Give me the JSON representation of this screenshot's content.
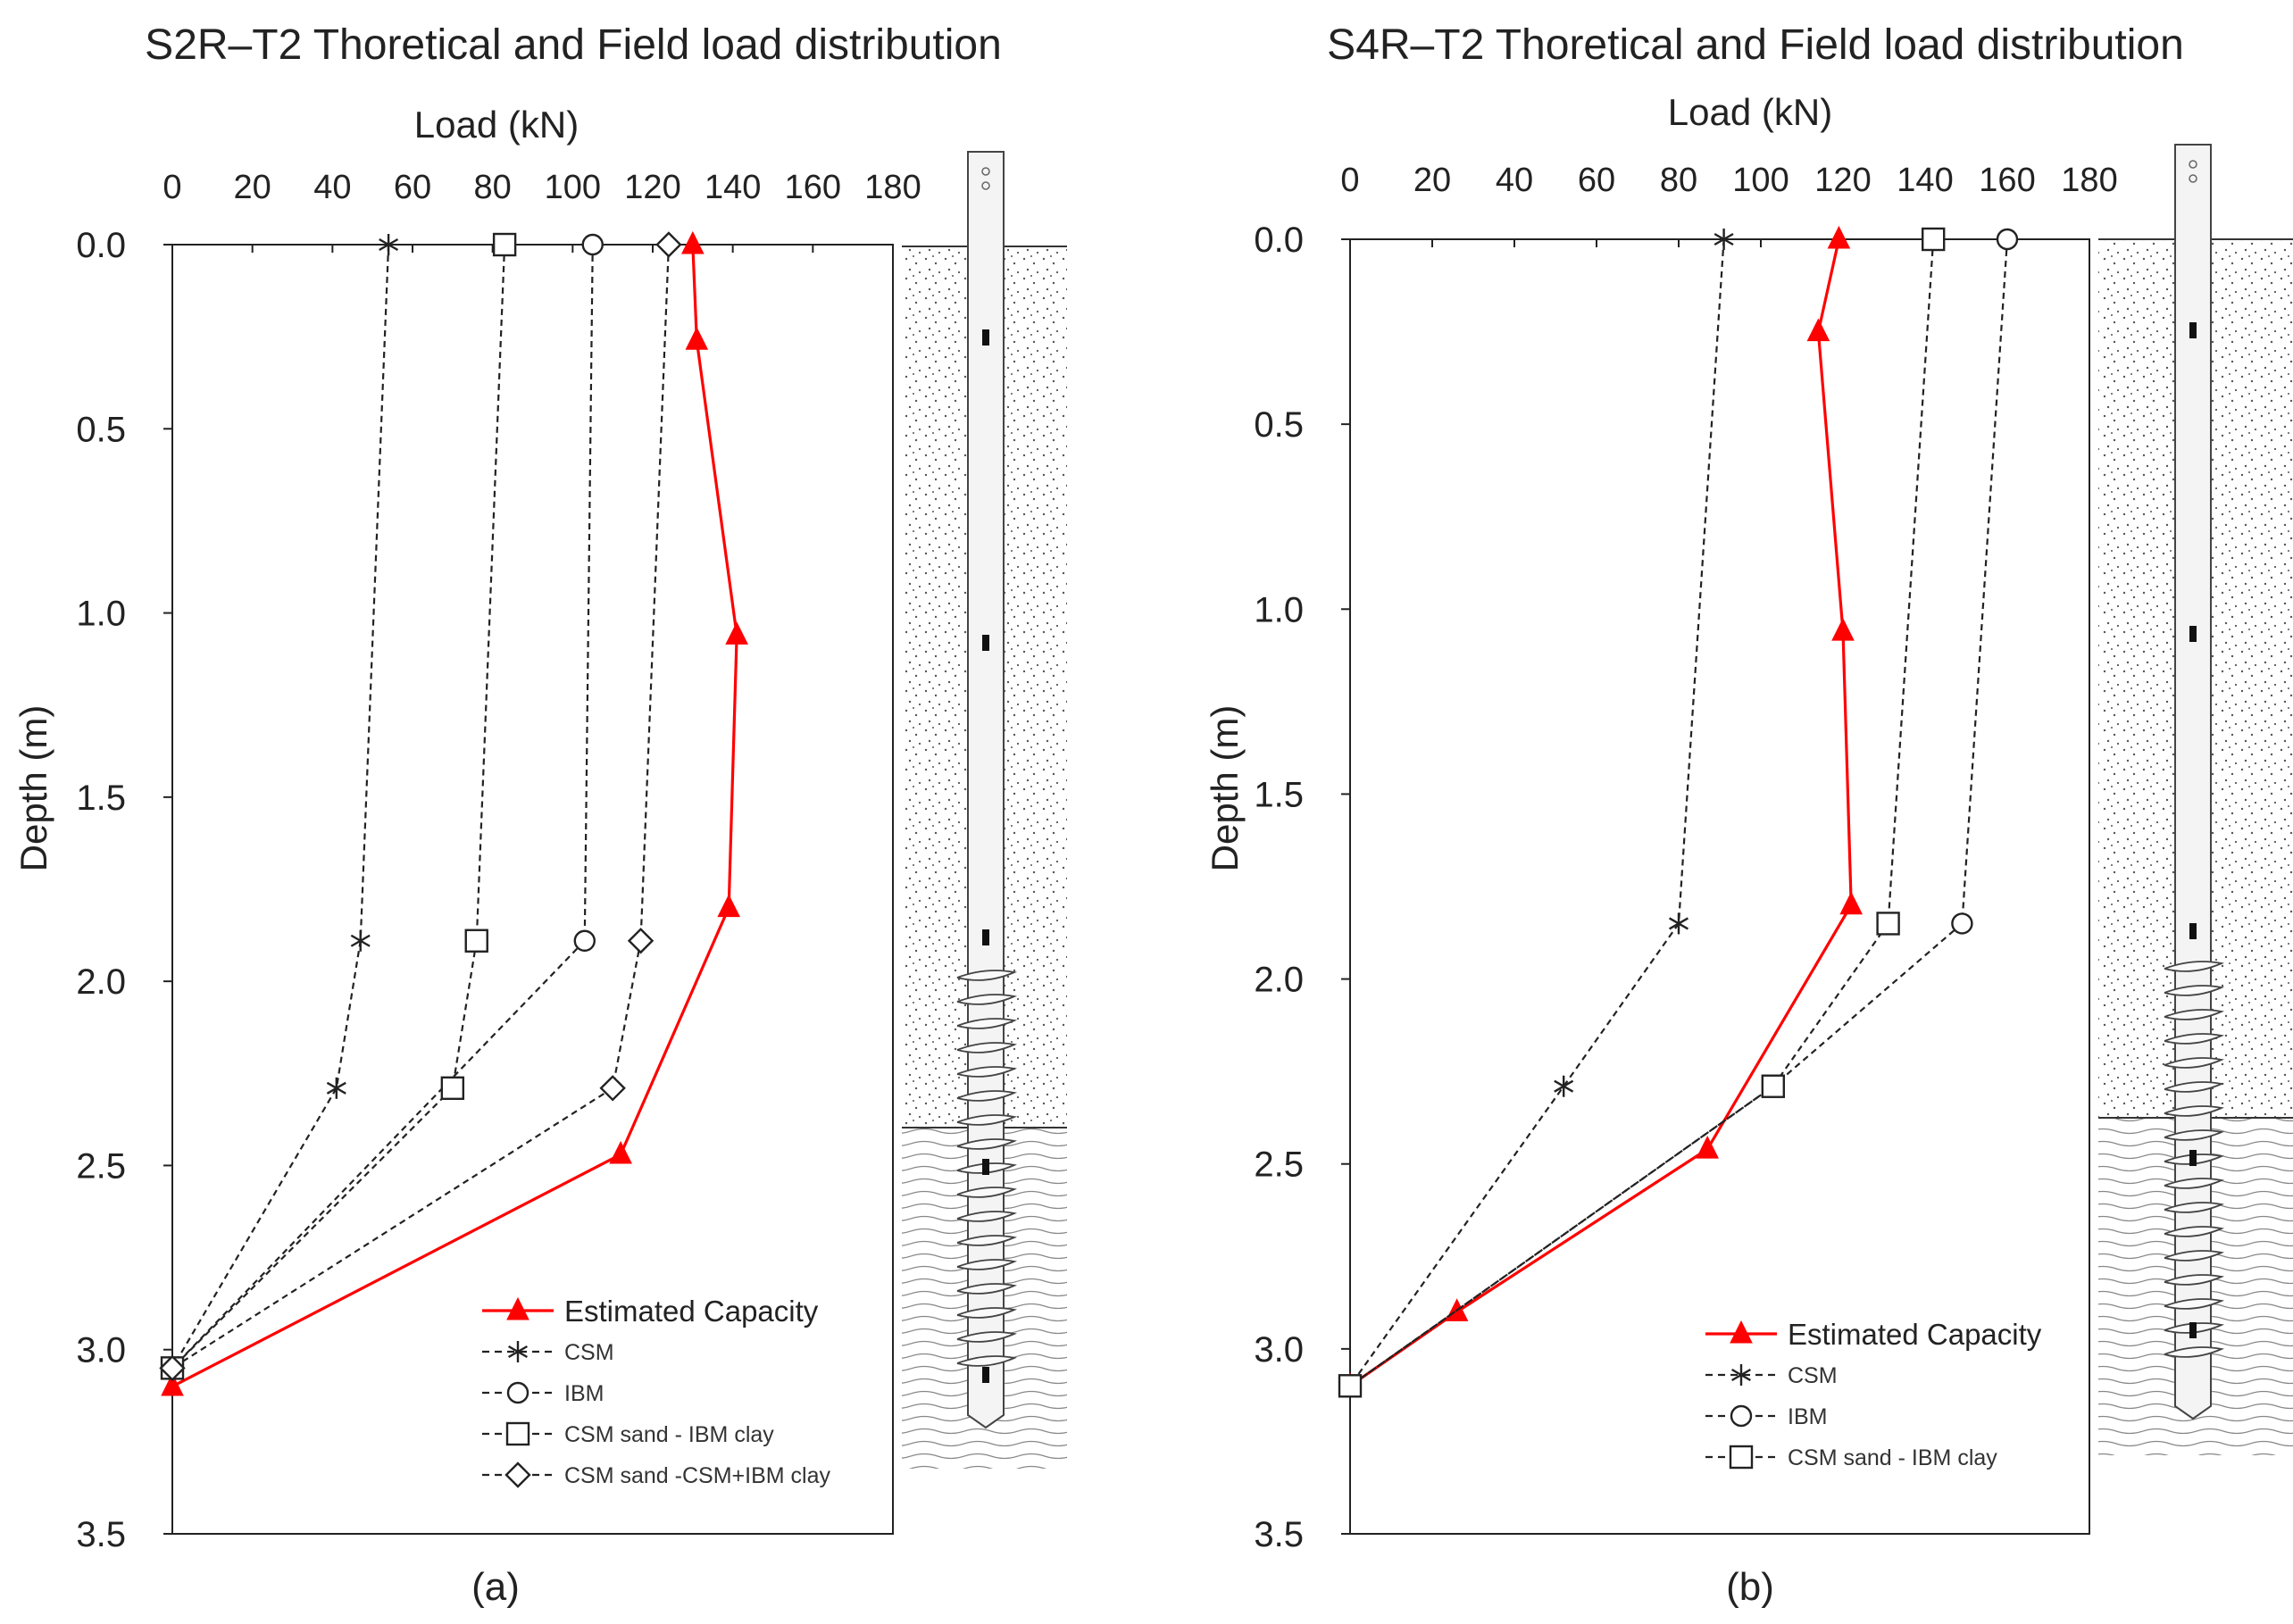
{
  "chart_data": [
    {
      "type": "line",
      "title": "S2R–T2 Thoretical and Field load distribution",
      "xlabel": "Load (kN)",
      "ylabel": "Depth (m)",
      "xlim": [
        0,
        180
      ],
      "ylim": [
        0,
        3.5
      ],
      "xticks": [
        "0",
        "20",
        "40",
        "60",
        "80",
        "100",
        "120",
        "140",
        "160",
        "180"
      ],
      "yticks": [
        "0.0",
        "0.5",
        "1.0",
        "1.5",
        "2.0",
        "2.5",
        "3.0",
        "3.5"
      ],
      "panel_label": "(a)",
      "series": [
        {
          "name": "Estimated Capacity",
          "marker": "triangle",
          "color": "#ff0000",
          "style": "solid",
          "points": [
            [
              130,
              0.0
            ],
            [
              131,
              0.26
            ],
            [
              141,
              1.06
            ],
            [
              139,
              1.8
            ],
            [
              112,
              2.47
            ],
            [
              0,
              3.1
            ]
          ]
        },
        {
          "name": "CSM",
          "marker": "asterisk",
          "color": "#222222",
          "style": "dashed",
          "points": [
            [
              54,
              0.0
            ],
            [
              47,
              1.89
            ],
            [
              41,
              2.29
            ],
            [
              0,
              3.05
            ]
          ]
        },
        {
          "name": "IBM",
          "marker": "circle",
          "color": "#222222",
          "style": "dashed",
          "points": [
            [
              105,
              0.0
            ],
            [
              103,
              1.89
            ],
            [
              0,
              3.05
            ]
          ]
        },
        {
          "name": "CSM sand - IBM clay",
          "marker": "square",
          "color": "#222222",
          "style": "dashed",
          "points": [
            [
              83,
              0.0
            ],
            [
              76,
              1.89
            ],
            [
              70,
              2.29
            ],
            [
              0,
              3.05
            ]
          ]
        },
        {
          "name": "CSM sand -CSM+IBM clay",
          "marker": "diamond",
          "color": "#222222",
          "style": "dashed",
          "points": [
            [
              124,
              0.0
            ],
            [
              117,
              1.89
            ],
            [
              110,
              2.29
            ],
            [
              0,
              3.05
            ]
          ]
        }
      ]
    },
    {
      "type": "line",
      "title": "S4R–T2 Thoretical and Field load distribution",
      "xlabel": "Load (kN)",
      "ylabel": "Depth (m)",
      "xlim": [
        0,
        180
      ],
      "ylim": [
        0,
        3.5
      ],
      "xticks": [
        "0",
        "20",
        "40",
        "60",
        "80",
        "100",
        "120",
        "140",
        "160",
        "180"
      ],
      "yticks": [
        "0.0",
        "0.5",
        "1.0",
        "1.5",
        "2.0",
        "2.5",
        "3.0",
        "3.5"
      ],
      "panel_label": "(b)",
      "series": [
        {
          "name": "Estimated Capacity",
          "marker": "triangle",
          "color": "#ff0000",
          "style": "solid",
          "points": [
            [
              119,
              0.0
            ],
            [
              114,
              0.25
            ],
            [
              120,
              1.06
            ],
            [
              122,
              1.8
            ],
            [
              87,
              2.46
            ],
            [
              26,
              2.9
            ],
            [
              0,
              3.1
            ]
          ]
        },
        {
          "name": "CSM",
          "marker": "asterisk",
          "color": "#222222",
          "style": "dashed",
          "points": [
            [
              91,
              0.0
            ],
            [
              80,
              1.85
            ],
            [
              52,
              2.29
            ],
            [
              0,
              3.1
            ]
          ]
        },
        {
          "name": "IBM",
          "marker": "circle",
          "color": "#222222",
          "style": "dashed",
          "points": [
            [
              160,
              0.0
            ],
            [
              149,
              1.85
            ],
            [
              103,
              2.29
            ],
            [
              0,
              3.1
            ]
          ]
        },
        {
          "name": "CSM sand - IBM clay",
          "marker": "square",
          "color": "#222222",
          "style": "dashed",
          "points": [
            [
              142,
              0.0
            ],
            [
              131,
              1.85
            ],
            [
              103,
              2.29
            ],
            [
              0,
              3.1
            ]
          ]
        }
      ]
    }
  ]
}
